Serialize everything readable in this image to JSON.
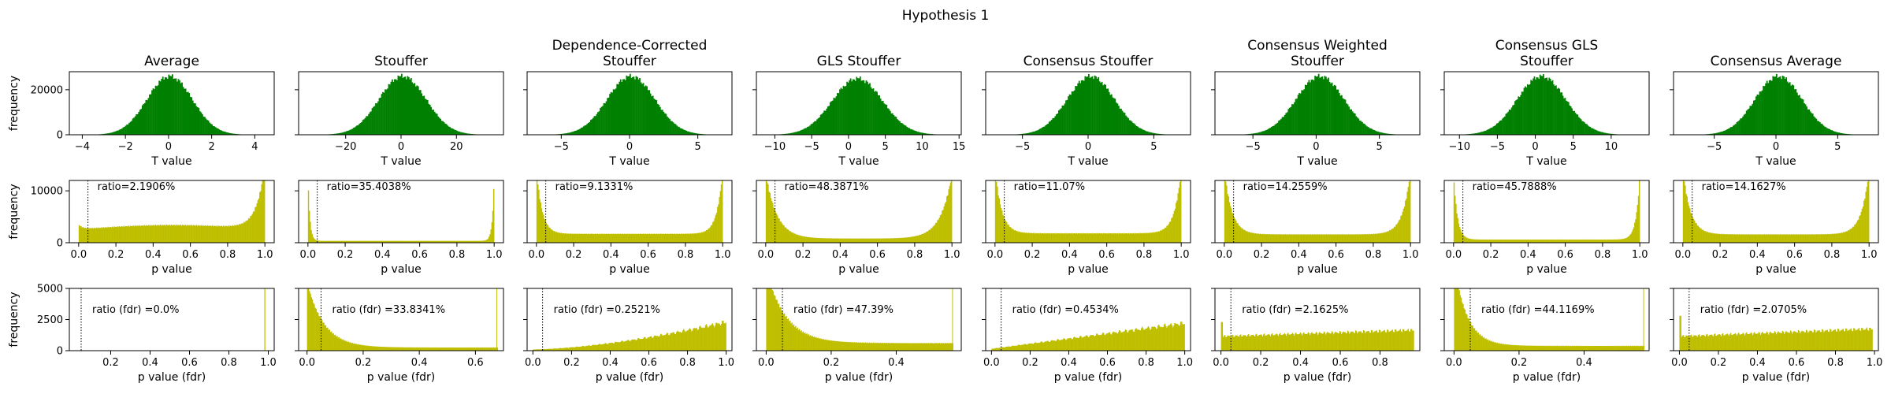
{
  "figure": {
    "title": "Hypothesis 1"
  },
  "colors": {
    "hist_t": "#008000",
    "hist_p": "#bfbf00",
    "axis": "#000000"
  },
  "row_labels": {
    "ylabel": "frequency"
  },
  "chart_data": [
    {
      "type": "bar",
      "row": "T value",
      "title_lines": [
        "Average"
      ],
      "xlabel": "T value",
      "ylabel": "frequency",
      "xlim": [
        -4.6,
        4.9
      ],
      "xticks": [
        -4,
        -2,
        0,
        2,
        4
      ],
      "ylim": [
        0,
        28000
      ],
      "yticks": [
        0,
        20000
      ],
      "distribution": {
        "shape": "gaussian",
        "center": 0.05,
        "sd": 1.05,
        "peak": 26000,
        "support": [
          -4.3,
          4.6
        ]
      }
    },
    {
      "type": "bar",
      "row": "T value",
      "title_lines": [
        "Stouffer"
      ],
      "xlabel": "T value",
      "ylabel": "frequency",
      "xlim": [
        -37,
        37
      ],
      "xticks": [
        -20,
        0,
        20
      ],
      "ylim": [
        0,
        28000
      ],
      "yticks": [
        0,
        20000
      ],
      "distribution": {
        "shape": "gaussian",
        "center": 0.5,
        "sd": 8.5,
        "peak": 26000,
        "support": [
          -34,
          34
        ]
      }
    },
    {
      "type": "bar",
      "row": "T value",
      "title_lines": [
        "Dependence-Corrected",
        "Stouffer"
      ],
      "xlabel": "T value",
      "ylabel": "frequency",
      "xlim": [
        -7.5,
        7.5
      ],
      "xticks": [
        -5,
        0,
        5
      ],
      "ylim": [
        0,
        28000
      ],
      "yticks": [
        0,
        20000
      ],
      "distribution": {
        "shape": "gaussian",
        "center": 0.1,
        "sd": 1.75,
        "peak": 26000,
        "support": [
          -7,
          7
        ]
      }
    },
    {
      "type": "bar",
      "row": "T value",
      "title_lines": [
        "GLS Stouffer"
      ],
      "xlabel": "T value",
      "ylabel": "frequency",
      "xlim": [
        -12.5,
        15.3
      ],
      "xticks": [
        -10,
        -5,
        0,
        5,
        10,
        15
      ],
      "ylim": [
        0,
        28000
      ],
      "yticks": [
        0,
        20000
      ],
      "distribution": {
        "shape": "gaussian",
        "center": 1.2,
        "sd": 3.4,
        "peak": 25000,
        "support": [
          -11.5,
          14.5
        ]
      }
    },
    {
      "type": "bar",
      "row": "T value",
      "title_lines": [
        "Consensus Stouffer"
      ],
      "xlabel": "T value",
      "ylabel": "frequency",
      "xlim": [
        -7.8,
        7.8
      ],
      "xticks": [
        -5,
        0,
        5
      ],
      "ylim": [
        0,
        28000
      ],
      "yticks": [
        0,
        20000
      ],
      "distribution": {
        "shape": "gaussian",
        "center": 0.2,
        "sd": 1.8,
        "peak": 26000,
        "support": [
          -7.3,
          7.3
        ]
      }
    },
    {
      "type": "bar",
      "row": "T value",
      "title_lines": [
        "Consensus Weighted",
        "Stouffer"
      ],
      "xlabel": "T value",
      "ylabel": "frequency",
      "xlim": [
        -8,
        8.2
      ],
      "xticks": [
        -5,
        0,
        5
      ],
      "ylim": [
        0,
        28000
      ],
      "yticks": [
        0,
        20000
      ],
      "distribution": {
        "shape": "gaussian",
        "center": 0.3,
        "sd": 1.9,
        "peak": 26000,
        "support": [
          -7.5,
          7.8
        ]
      }
    },
    {
      "type": "bar",
      "row": "T value",
      "title_lines": [
        "Consensus GLS",
        "Stouffer"
      ],
      "xlabel": "T value",
      "ylabel": "frequency",
      "xlim": [
        -12,
        15
      ],
      "xticks": [
        -10,
        -5,
        0,
        5,
        10
      ],
      "ylim": [
        0,
        28000
      ],
      "yticks": [
        0,
        20000
      ],
      "distribution": {
        "shape": "gaussian",
        "center": 0.8,
        "sd": 3.2,
        "peak": 26000,
        "support": [
          -11,
          13
        ]
      }
    },
    {
      "type": "bar",
      "row": "T value",
      "title_lines": [
        "Consensus Average"
      ],
      "xlabel": "T value",
      "ylabel": "frequency",
      "xlim": [
        -8.3,
        8.3
      ],
      "xticks": [
        -5,
        0,
        5
      ],
      "ylim": [
        0,
        28000
      ],
      "yticks": [
        0,
        20000
      ],
      "distribution": {
        "shape": "gaussian",
        "center": 0.2,
        "sd": 1.9,
        "peak": 26000,
        "support": [
          -7.8,
          7.8
        ]
      }
    },
    {
      "type": "bar",
      "row": "p value",
      "xlabel": "p value",
      "ylabel": "frequency",
      "xlim": [
        -0.05,
        1.05
      ],
      "xticks": [
        0.0,
        0.2,
        0.4,
        0.6,
        0.8,
        1.0
      ],
      "ylim": [
        0,
        12000
      ],
      "yticks": [
        0,
        10000
      ],
      "annotation": "ratio=2.1906%",
      "threshold": 0.05,
      "distribution": {
        "shape": "u",
        "base": 2600,
        "hump": 800,
        "left_spike": 900,
        "right_spike": 12500,
        "right_width": 0.045,
        "left_width": 0.02
      }
    },
    {
      "type": "bar",
      "row": "p value",
      "xlabel": "p value",
      "ylabel": "frequency",
      "xlim": [
        -0.05,
        1.05
      ],
      "xticks": [
        0.0,
        0.2,
        0.4,
        0.6,
        0.8,
        1.0
      ],
      "ylim": [
        0,
        12000
      ],
      "yticks": [
        0,
        10000
      ],
      "annotation": "ratio=35.4038%",
      "threshold": 0.05,
      "distribution": {
        "shape": "u",
        "base": 350,
        "hump": 0,
        "left_spike": 12500,
        "right_spike": 12500,
        "right_width": 0.01,
        "left_width": 0.01
      }
    },
    {
      "type": "bar",
      "row": "p value",
      "xlabel": "p value",
      "ylabel": "frequency",
      "xlim": [
        -0.05,
        1.05
      ],
      "xticks": [
        0.0,
        0.2,
        0.4,
        0.6,
        0.8,
        1.0
      ],
      "ylim": [
        0,
        12000
      ],
      "yticks": [
        0,
        10000
      ],
      "annotation": "ratio=9.1331%",
      "threshold": 0.05,
      "distribution": {
        "shape": "u",
        "base": 1700,
        "hump": 0,
        "left_spike": 12500,
        "right_spike": 12500,
        "right_width": 0.03,
        "left_width": 0.03
      }
    },
    {
      "type": "bar",
      "row": "p value",
      "xlabel": "p value",
      "ylabel": "frequency",
      "xlim": [
        -0.05,
        1.05
      ],
      "xticks": [
        0.0,
        0.2,
        0.4,
        0.6,
        0.8,
        1.0
      ],
      "ylim": [
        0,
        12000
      ],
      "yticks": [
        0,
        10000
      ],
      "annotation": "ratio=48.3871%",
      "threshold": 0.05,
      "distribution": {
        "shape": "u",
        "base": 800,
        "hump": 0,
        "left_spike": 12500,
        "right_spike": 12500,
        "right_width": 0.06,
        "left_width": 0.06
      }
    },
    {
      "type": "bar",
      "row": "p value",
      "xlabel": "p value",
      "ylabel": "frequency",
      "xlim": [
        -0.05,
        1.05
      ],
      "xticks": [
        0.0,
        0.2,
        0.4,
        0.6,
        0.8,
        1.0
      ],
      "ylim": [
        0,
        12000
      ],
      "yticks": [
        0,
        10000
      ],
      "annotation": "ratio=11.07%",
      "threshold": 0.05,
      "distribution": {
        "shape": "u",
        "base": 1800,
        "hump": 0,
        "left_spike": 12500,
        "right_spike": 12500,
        "right_width": 0.035,
        "left_width": 0.035
      }
    },
    {
      "type": "bar",
      "row": "p value",
      "xlabel": "p value",
      "ylabel": "frequency",
      "xlim": [
        -0.05,
        1.05
      ],
      "xticks": [
        0.0,
        0.2,
        0.4,
        0.6,
        0.8,
        1.0
      ],
      "ylim": [
        0,
        12000
      ],
      "yticks": [
        0,
        10000
      ],
      "annotation": "ratio=14.2559%",
      "threshold": 0.05,
      "distribution": {
        "shape": "u",
        "base": 1600,
        "hump": 0,
        "left_spike": 12500,
        "right_spike": 12500,
        "right_width": 0.04,
        "left_width": 0.04
      }
    },
    {
      "type": "bar",
      "row": "p value",
      "xlabel": "p value",
      "ylabel": "frequency",
      "xlim": [
        -0.05,
        1.05
      ],
      "xticks": [
        0.0,
        0.2,
        0.4,
        0.6,
        0.8,
        1.0
      ],
      "ylim": [
        0,
        12000
      ],
      "yticks": [
        0,
        10000
      ],
      "annotation": "ratio=45.7888%",
      "threshold": 0.05,
      "distribution": {
        "shape": "u",
        "base": 600,
        "hump": 0,
        "left_spike": 12500,
        "right_spike": 12500,
        "right_width": 0.02,
        "left_width": 0.02
      }
    },
    {
      "type": "bar",
      "row": "p value",
      "xlabel": "p value",
      "ylabel": "frequency",
      "xlim": [
        -0.05,
        1.05
      ],
      "xticks": [
        0.0,
        0.2,
        0.4,
        0.6,
        0.8,
        1.0
      ],
      "ylim": [
        0,
        12000
      ],
      "yticks": [
        0,
        10000
      ],
      "annotation": "ratio=14.1627%",
      "threshold": 0.05,
      "distribution": {
        "shape": "u",
        "base": 1600,
        "hump": 0,
        "left_spike": 12500,
        "right_spike": 12500,
        "right_width": 0.04,
        "left_width": 0.04
      }
    },
    {
      "type": "bar",
      "row": "p value (fdr)",
      "xlabel": "p value (fdr)",
      "ylabel": "frequency",
      "xlim": [
        -0.01,
        1.03
      ],
      "xticks": [
        0.2,
        0.4,
        0.6,
        0.8,
        1.0
      ],
      "ylim": [
        0,
        5000
      ],
      "yticks": [
        0,
        2500,
        5000
      ],
      "annotation": "ratio (fdr) =0.0%",
      "threshold": 0.05,
      "distribution": {
        "shape": "fdr_empty",
        "spike_x": 0.98,
        "spike_h": 5200
      }
    },
    {
      "type": "bar",
      "row": "p value (fdr)",
      "xlabel": "p value (fdr)",
      "ylabel": "frequency",
      "xlim": [
        -0.03,
        0.7
      ],
      "xticks": [
        0.0,
        0.2,
        0.4,
        0.6
      ],
      "ylim": [
        0,
        5000
      ],
      "yticks": [
        0,
        2500,
        5000
      ],
      "annotation": "ratio (fdr) =33.8341%",
      "threshold": 0.05,
      "distribution": {
        "shape": "fdr_decay",
        "start": 0.0,
        "end": 0.68,
        "peak": 5500,
        "tail": 250,
        "decay": 0.06,
        "spike_x": 0.675,
        "spike_h": 5200
      }
    },
    {
      "type": "bar",
      "row": "p value (fdr)",
      "xlabel": "p value (fdr)",
      "ylabel": "frequency",
      "xlim": [
        -0.03,
        1.03
      ],
      "xticks": [
        0.0,
        0.2,
        0.4,
        0.6,
        0.8,
        1.0
      ],
      "ylim": [
        0,
        5000
      ],
      "yticks": [
        0,
        2500,
        5000
      ],
      "annotation": "ratio (fdr) =0.2521%",
      "threshold": 0.05,
      "distribution": {
        "shape": "fdr_ramp",
        "start": 0.0,
        "end": 1.0,
        "low": 100,
        "high": 2300,
        "exp": 1.6
      }
    },
    {
      "type": "bar",
      "row": "p value (fdr)",
      "xlabel": "p value (fdr)",
      "ylabel": "frequency",
      "xlim": [
        -0.03,
        0.6
      ],
      "xticks": [
        0.0,
        0.2,
        0.4
      ],
      "ylim": [
        0,
        5000
      ],
      "yticks": [
        0,
        2500,
        5000
      ],
      "annotation": "ratio (fdr) =47.39%",
      "threshold": 0.05,
      "distribution": {
        "shape": "fdr_decay",
        "start": 0.0,
        "end": 0.575,
        "peak": 6500,
        "tail": 600,
        "decay": 0.06,
        "spike_x": 0.572,
        "spike_h": 5200
      }
    },
    {
      "type": "bar",
      "row": "p value (fdr)",
      "xlabel": "p value (fdr)",
      "ylabel": "frequency",
      "xlim": [
        -0.03,
        1.03
      ],
      "xticks": [
        0.0,
        0.2,
        0.4,
        0.6,
        0.8,
        1.0
      ],
      "ylim": [
        0,
        5000
      ],
      "yticks": [
        0,
        2500,
        5000
      ],
      "annotation": "ratio (fdr) =0.4534%",
      "threshold": 0.05,
      "distribution": {
        "shape": "fdr_ramp",
        "start": 0.0,
        "end": 1.0,
        "low": 150,
        "high": 2200,
        "exp": 1.0
      }
    },
    {
      "type": "bar",
      "row": "p value (fdr)",
      "xlabel": "p value (fdr)",
      "ylabel": "frequency",
      "xlim": [
        -0.03,
        1.0
      ],
      "xticks": [
        0.0,
        0.2,
        0.4,
        0.6,
        0.8
      ],
      "ylim": [
        0,
        5000
      ],
      "yticks": [
        0,
        2500,
        5000
      ],
      "annotation": "ratio (fdr) =2.1625%",
      "threshold": 0.05,
      "distribution": {
        "shape": "fdr_flat",
        "start": 0.0,
        "end": 0.97,
        "low": 1150,
        "high": 1650,
        "left_spike": 2300
      }
    },
    {
      "type": "bar",
      "row": "p value (fdr)",
      "xlabel": "p value (fdr)",
      "ylabel": "frequency",
      "xlim": [
        -0.03,
        0.6
      ],
      "xticks": [
        0.0,
        0.2,
        0.4
      ],
      "ylim": [
        0,
        5000
      ],
      "yticks": [
        0,
        2500,
        5000
      ],
      "annotation": "ratio (fdr) =44.1169%",
      "threshold": 0.05,
      "distribution": {
        "shape": "fdr_decay",
        "start": 0.0,
        "end": 0.585,
        "peak": 7000,
        "tail": 380,
        "decay": 0.04,
        "spike_x": 0.582,
        "spike_h": 5200
      }
    },
    {
      "type": "bar",
      "row": "p value (fdr)",
      "xlabel": "p value (fdr)",
      "ylabel": "frequency",
      "xlim": [
        -0.03,
        1.02
      ],
      "xticks": [
        0.0,
        0.2,
        0.4,
        0.6,
        0.8,
        1.0
      ],
      "ylim": [
        0,
        5000
      ],
      "yticks": [
        0,
        2500,
        5000
      ],
      "annotation": "ratio (fdr) =2.0705%",
      "threshold": 0.05,
      "distribution": {
        "shape": "fdr_flat",
        "start": 0.0,
        "end": 0.99,
        "low": 1150,
        "high": 1750,
        "left_spike": 2800
      }
    }
  ]
}
